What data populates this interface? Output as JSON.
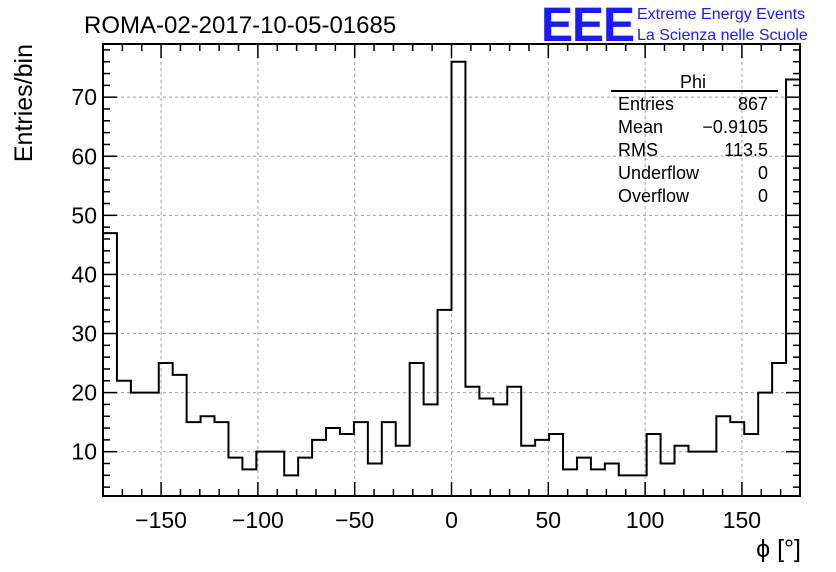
{
  "header": {
    "run_title": "ROMA-02-2017-10-05-01685",
    "logo_mark": "EEE",
    "logo_line1": "Extreme Energy Events",
    "logo_line2": "La Scienza nelle Scuole"
  },
  "stats_box": {
    "name": "Phi",
    "rows": [
      {
        "label": "Entries",
        "value": "867"
      },
      {
        "label": "Mean",
        "value": "−0.9105"
      },
      {
        "label": "RMS",
        "value": "113.5"
      },
      {
        "label": "Underflow",
        "value": "0"
      },
      {
        "label": "Overflow",
        "value": "0"
      }
    ]
  },
  "chart_data": {
    "type": "bar",
    "style": "step-histogram",
    "xlabel": "ϕ [°]",
    "ylabel": "Entries/bin",
    "xlim": [
      -180,
      180
    ],
    "ylim": [
      2.5,
      79
    ],
    "grid": true,
    "bin_width": 7.2,
    "x_ticks": [
      -150,
      -100,
      -50,
      0,
      50,
      100,
      150
    ],
    "x_tick_labels": [
      "−150",
      "−100",
      "−50",
      "0",
      "50",
      "100",
      "150"
    ],
    "y_ticks": [
      10,
      20,
      30,
      40,
      50,
      60,
      70
    ],
    "y_tick_labels": [
      "10",
      "20",
      "30",
      "40",
      "50",
      "60",
      "70"
    ],
    "values": [
      47,
      22,
      20,
      20,
      25,
      23,
      15,
      16,
      15,
      9,
      7,
      10,
      10,
      6,
      9,
      12,
      14,
      13,
      15,
      8,
      15,
      11,
      25,
      18,
      34,
      76,
      21,
      19,
      18,
      21,
      11,
      12,
      13,
      7,
      9,
      7,
      8,
      6,
      6,
      13,
      8,
      11,
      10,
      10,
      16,
      15,
      13,
      20,
      25,
      73
    ],
    "colors": {
      "line": "#000000",
      "grid": "#a0a0a0",
      "logo": "#1a1aff"
    }
  }
}
